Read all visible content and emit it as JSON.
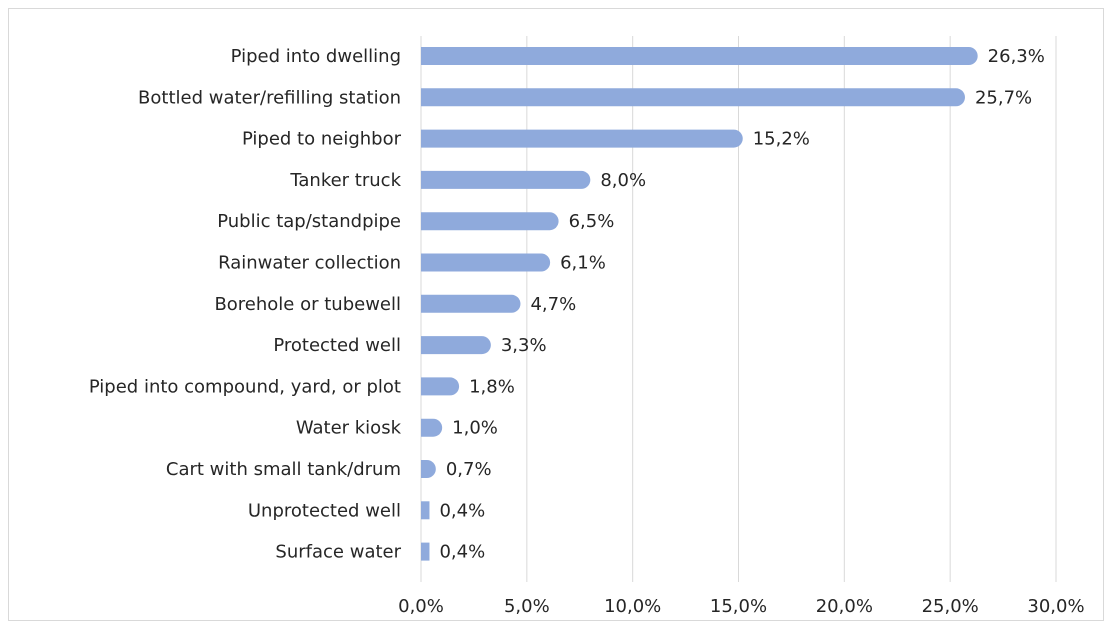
{
  "chart_data": {
    "type": "bar",
    "orientation": "horizontal",
    "categories": [
      "Piped into dwelling",
      "Bottled water/refilling station",
      "Piped to neighbor",
      "Tanker truck",
      "Public tap/standpipe",
      "Rainwater collection",
      "Borehole or tubewell",
      "Protected well",
      "Piped into compound, yard, or plot",
      "Water kiosk",
      "Cart with small tank/drum",
      "Unprotected well",
      "Surface water"
    ],
    "values": [
      26.3,
      25.7,
      15.2,
      8.0,
      6.5,
      6.1,
      4.7,
      3.3,
      1.8,
      1.0,
      0.7,
      0.4,
      0.4
    ],
    "value_labels": [
      "26,3%",
      "25,7%",
      "15,2%",
      "8,0%",
      "6,5%",
      "6,1%",
      "4,7%",
      "3,3%",
      "1,8%",
      "1,0%",
      "0,7%",
      "0,4%",
      "0,4%"
    ],
    "x_ticks": [
      0,
      5,
      10,
      15,
      20,
      25,
      30
    ],
    "x_tick_labels": [
      "0,0%",
      "5,0%",
      "10,0%",
      "15,0%",
      "20,0%",
      "25,0%",
      "30,0%"
    ],
    "xlim": [
      0,
      30
    ],
    "grid": true,
    "legend": "none",
    "colors": {
      "bar": "#8faadc",
      "grid": "#d9d9d9",
      "text": "#262626"
    }
  }
}
